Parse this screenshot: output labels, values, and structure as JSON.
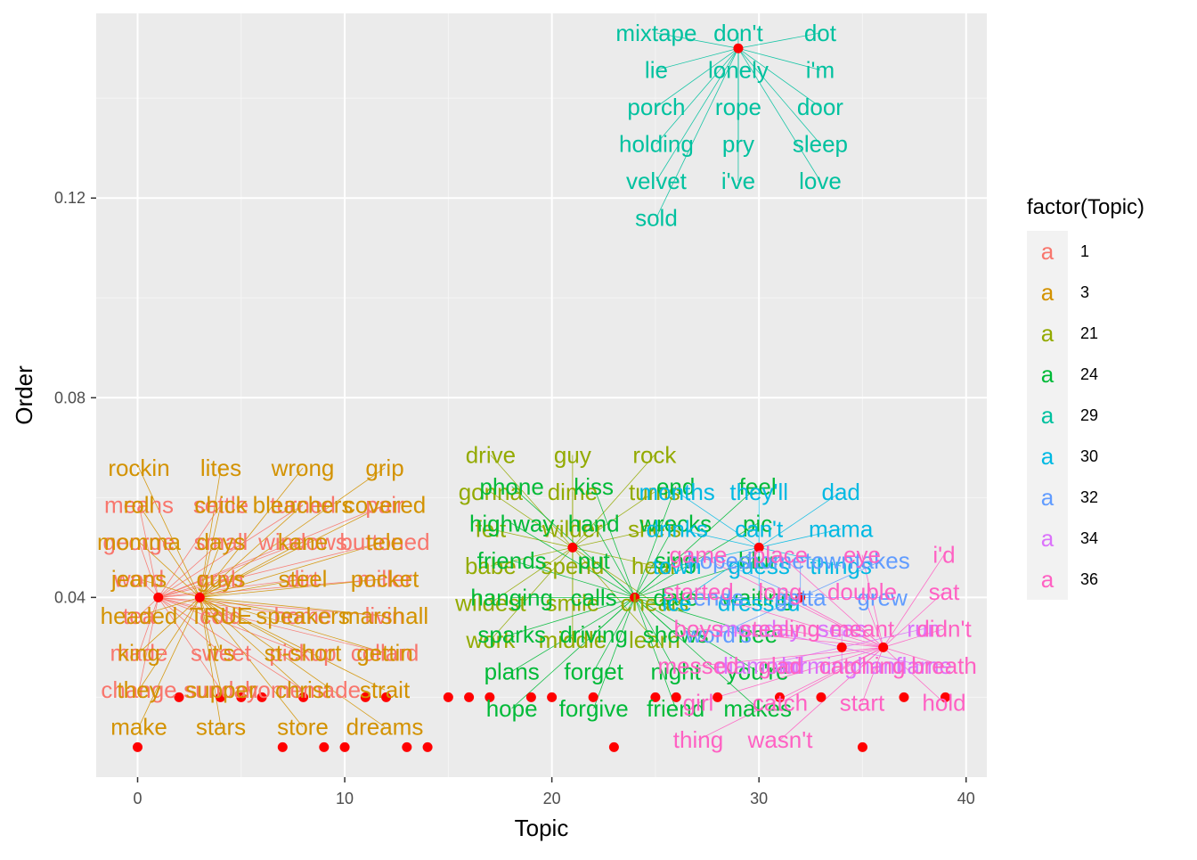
{
  "chart_data": {
    "type": "scatter",
    "xlabel": "Topic",
    "ylabel": "Order",
    "xlim": [
      -2,
      41
    ],
    "ylim": [
      0.004,
      0.157
    ],
    "x_ticks": [
      0,
      10,
      20,
      30,
      40
    ],
    "y_ticks": [
      0.04,
      0.08,
      0.12
    ],
    "x_tick_labels": [
      "0",
      "10",
      "20",
      "30",
      "40"
    ],
    "y_tick_labels": [
      "0.04",
      "0.08",
      "0.12"
    ],
    "grid": true,
    "point_color": "#ff0000",
    "legend": {
      "title": "factor(Topic)",
      "position": "right",
      "glyph": "a",
      "items": [
        {
          "key": "1",
          "color": "#F8766D"
        },
        {
          "key": "3",
          "color": "#D39200"
        },
        {
          "key": "21",
          "color": "#93AA00"
        },
        {
          "key": "24",
          "color": "#00BA38"
        },
        {
          "key": "29",
          "color": "#00C19F"
        },
        {
          "key": "30",
          "color": "#00B9E3"
        },
        {
          "key": "32",
          "color": "#619CFF"
        },
        {
          "key": "34",
          "color": "#DB72FB"
        },
        {
          "key": "36",
          "color": "#FF61C3"
        }
      ]
    },
    "points": [
      {
        "x": 0,
        "y": 0.01
      },
      {
        "x": 1,
        "y": 0.04
      },
      {
        "x": 2,
        "y": 0.02
      },
      {
        "x": 3,
        "y": 0.04
      },
      {
        "x": 4,
        "y": 0.02
      },
      {
        "x": 5,
        "y": 0.02
      },
      {
        "x": 6,
        "y": 0.02
      },
      {
        "x": 7,
        "y": 0.01
      },
      {
        "x": 8,
        "y": 0.02
      },
      {
        "x": 9,
        "y": 0.01
      },
      {
        "x": 10,
        "y": 0.01
      },
      {
        "x": 11,
        "y": 0.02
      },
      {
        "x": 12,
        "y": 0.02
      },
      {
        "x": 13,
        "y": 0.01
      },
      {
        "x": 14,
        "y": 0.01
      },
      {
        "x": 15,
        "y": 0.02
      },
      {
        "x": 16,
        "y": 0.02
      },
      {
        "x": 17,
        "y": 0.02
      },
      {
        "x": 19,
        "y": 0.02
      },
      {
        "x": 20,
        "y": 0.02
      },
      {
        "x": 21,
        "y": 0.05
      },
      {
        "x": 22,
        "y": 0.02
      },
      {
        "x": 23,
        "y": 0.01
      },
      {
        "x": 24,
        "y": 0.04
      },
      {
        "x": 25,
        "y": 0.02
      },
      {
        "x": 26,
        "y": 0.02
      },
      {
        "x": 28,
        "y": 0.02
      },
      {
        "x": 29,
        "y": 0.15
      },
      {
        "x": 30,
        "y": 0.05
      },
      {
        "x": 31,
        "y": 0.02
      },
      {
        "x": 32,
        "y": 0.04
      },
      {
        "x": 33,
        "y": 0.02
      },
      {
        "x": 34,
        "y": 0.03
      },
      {
        "x": 35,
        "y": 0.01
      },
      {
        "x": 36,
        "y": 0.03
      },
      {
        "x": 37,
        "y": 0.02
      },
      {
        "x": 39,
        "y": 0.02
      }
    ],
    "word_groups": [
      {
        "topic": "1",
        "x": 1,
        "y": 0.04,
        "words": [
          "means",
          "settle",
          "turned",
          "pair",
          "george",
          "small",
          "windows",
          "buttoned",
          "word",
          "crab",
          "dirt",
          "miller",
          "tea",
          "cold",
          "home",
          "livin",
          "made",
          "sweet",
          "pickup",
          "collard",
          "change",
          "sunday",
          "homemade"
        ]
      },
      {
        "topic": "3",
        "x": 3,
        "y": 0.04,
        "words": [
          "rockin",
          "lites",
          "wrong",
          "grip",
          "roll",
          "chick",
          "bleachers",
          "covered",
          "momma",
          "days",
          "kane",
          "tele",
          "jeans",
          "guys",
          "steel",
          "pocket",
          "headed",
          "TRUE",
          "speakers",
          "marshall",
          "king",
          "it's",
          "st-short",
          "gettin",
          "they",
          "supper",
          "christ",
          "strait",
          "make",
          "stars",
          "store",
          "dreams"
        ]
      },
      {
        "topic": "21",
        "x": 21,
        "y": 0.05,
        "words": [
          "drive",
          "guy",
          "rock",
          "gonna",
          "dime",
          "turns",
          "felt",
          "wilder",
          "she's",
          "babe",
          "spend",
          "hear",
          "wildest",
          "smile",
          "cheats",
          "work",
          "middle",
          "learn"
        ]
      },
      {
        "topic": "24",
        "x": 24,
        "y": 0.04,
        "words": [
          "phone",
          "kiss",
          "end",
          "feel",
          "highway",
          "hand",
          "wrecks",
          "pic",
          "friends",
          "put",
          "sing",
          "blur",
          "hanging",
          "calls",
          "date",
          "waiting",
          "sparks",
          "driving",
          "shows",
          "free",
          "plans",
          "forget",
          "night",
          "you're",
          "hope",
          "forgive",
          "friend",
          "makes"
        ]
      },
      {
        "topic": "29",
        "x": 29,
        "y": 0.15,
        "words": [
          "mixtape",
          "don't",
          "dot",
          "lie",
          "lonely",
          "i'm",
          "porch",
          "rope",
          "door",
          "holding",
          "pry",
          "sleep",
          "velvet",
          "i've",
          "love",
          "sold"
        ]
      },
      {
        "topic": "30",
        "x": 30,
        "y": 0.05,
        "words": [
          "months",
          "they'll",
          "dad",
          "drinks",
          "can't",
          "mama",
          "town",
          "guess",
          "things",
          "ice",
          "dressed"
        ]
      },
      {
        "topic": "32",
        "x": 32,
        "y": 0.04,
        "words": [
          "hopes",
          "hometown",
          "takes",
          "ends",
          "gotta",
          "grew",
          "word's"
        ]
      },
      {
        "topic": "34",
        "x": 34,
        "y": 0.03,
        "words": [
          "monday",
          "seas",
          "run",
          "diamond",
          "birmingham",
          "flame"
        ]
      },
      {
        "topic": "36",
        "x": 36,
        "y": 0.03,
        "words": [
          "game",
          "place",
          "eye",
          "i'd",
          "started",
          "long",
          "double",
          "sat",
          "boys",
          "stealing",
          "meant",
          "didn't",
          "messed",
          "glad",
          "catching",
          "breath",
          "girl",
          "catch",
          "start",
          "hold",
          "thing",
          "wasn't"
        ]
      }
    ]
  }
}
